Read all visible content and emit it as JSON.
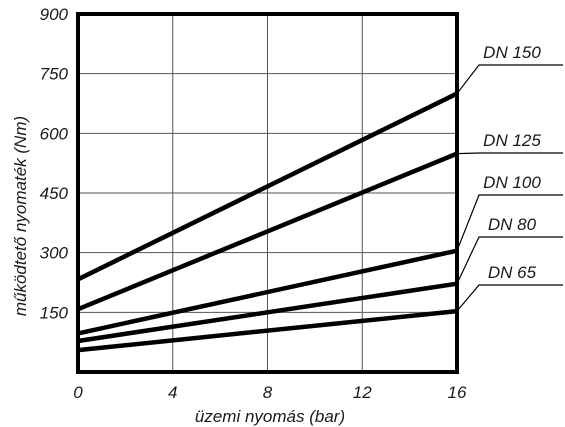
{
  "chart_data": {
    "type": "line",
    "title": "",
    "xlabel": "üzemi nyomás (bar)",
    "ylabel": "működtető nyomaték (Nm)",
    "xlim": [
      0,
      16
    ],
    "ylim": [
      0,
      900
    ],
    "x_ticks": [
      0,
      4,
      8,
      12,
      16
    ],
    "y_ticks": [
      150,
      300,
      450,
      600,
      750,
      900
    ],
    "x_tick_labels": [
      "0",
      "4",
      "8",
      "12",
      "16"
    ],
    "y_tick_labels": [
      "150",
      "300",
      "450",
      "600",
      "750",
      "900"
    ],
    "grid": true,
    "legend": "direct labels at right end of lines",
    "series": [
      {
        "name": "DN 150",
        "x": [
          0,
          16
        ],
        "y": [
          233,
          700
        ]
      },
      {
        "name": "DN 125",
        "x": [
          0,
          16
        ],
        "y": [
          158,
          549
        ]
      },
      {
        "name": "DN 100",
        "x": [
          0,
          16
        ],
        "y": [
          97,
          305
        ]
      },
      {
        "name": "DN 80",
        "x": [
          0,
          16
        ],
        "y": [
          78,
          222
        ]
      },
      {
        "name": "DN 65",
        "x": [
          0,
          16
        ],
        "y": [
          55,
          153
        ]
      }
    ]
  }
}
